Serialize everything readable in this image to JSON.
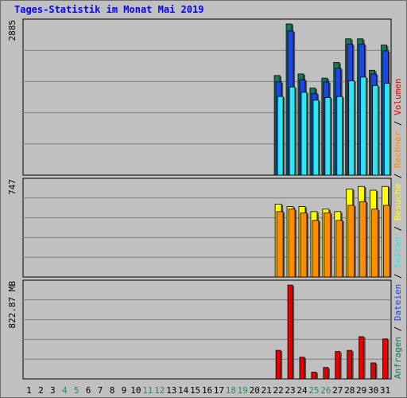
{
  "title": "Tages-Statistik im Monat Mai 2019",
  "colors": {
    "background": "#c0c0c0",
    "frame": "#6d6d6d",
    "title": "#0000ff",
    "anfragen": "#157a5a",
    "dateien": "#1e46e6",
    "seiten": "#2ee6f0",
    "besuche": "#ffff00",
    "rechner": "#ff8c00",
    "volumen": "#e60000",
    "weekend_day": "#2e8b57",
    "weekday": "#000000"
  },
  "chart_data": [
    {
      "type": "bar",
      "panel": "top",
      "y_max_label": "2885",
      "ylim": [
        0,
        2885
      ],
      "x": [
        1,
        2,
        3,
        4,
        5,
        6,
        7,
        8,
        9,
        10,
        11,
        12,
        13,
        14,
        15,
        16,
        17,
        18,
        19,
        20,
        21,
        22,
        23,
        24,
        25,
        26,
        27,
        28,
        29,
        30,
        31
      ],
      "series": [
        {
          "name": "Anfragen",
          "color": "#157a5a",
          "values": [
            0,
            0,
            0,
            0,
            0,
            0,
            0,
            0,
            0,
            0,
            0,
            0,
            0,
            0,
            0,
            0,
            0,
            0,
            0,
            0,
            0,
            1900,
            2885,
            1930,
            1660,
            1850,
            2150,
            2600,
            2600,
            2000,
            2480
          ]
        },
        {
          "name": "Dateien",
          "color": "#1e46e6",
          "values": [
            0,
            0,
            0,
            0,
            0,
            0,
            0,
            0,
            0,
            0,
            0,
            0,
            0,
            0,
            0,
            0,
            0,
            0,
            0,
            0,
            0,
            1780,
            2750,
            1820,
            1560,
            1780,
            2040,
            2500,
            2500,
            1930,
            2370
          ]
        },
        {
          "name": "Seiten",
          "color": "#2ee6f0",
          "values": [
            0,
            0,
            0,
            0,
            0,
            0,
            0,
            0,
            0,
            0,
            0,
            0,
            0,
            0,
            0,
            0,
            0,
            0,
            0,
            0,
            0,
            1500,
            1680,
            1580,
            1430,
            1480,
            1500,
            1800,
            1870,
            1710,
            1750
          ]
        }
      ]
    },
    {
      "type": "bar",
      "panel": "middle",
      "y_max_label": "747",
      "ylim": [
        0,
        747
      ],
      "x": [
        1,
        2,
        3,
        4,
        5,
        6,
        7,
        8,
        9,
        10,
        11,
        12,
        13,
        14,
        15,
        16,
        17,
        18,
        19,
        20,
        21,
        22,
        23,
        24,
        25,
        26,
        27,
        28,
        29,
        30,
        31
      ],
      "series": [
        {
          "name": "Besuche",
          "color": "#ffff00",
          "values": [
            0,
            0,
            0,
            0,
            0,
            0,
            0,
            0,
            0,
            0,
            0,
            0,
            0,
            0,
            0,
            0,
            0,
            0,
            0,
            0,
            0,
            580,
            560,
            560,
            520,
            540,
            520,
            700,
            720,
            690,
            720
          ]
        },
        {
          "name": "Rechner",
          "color": "#ff8c00",
          "values": [
            0,
            0,
            0,
            0,
            0,
            0,
            0,
            0,
            0,
            0,
            0,
            0,
            0,
            0,
            0,
            0,
            0,
            0,
            0,
            0,
            0,
            520,
            540,
            510,
            450,
            510,
            450,
            570,
            600,
            540,
            570
          ]
        }
      ]
    },
    {
      "type": "bar",
      "panel": "bottom",
      "y_max_label": "822.87 MB",
      "ylim": [
        0,
        822.87
      ],
      "x": [
        1,
        2,
        3,
        4,
        5,
        6,
        7,
        8,
        9,
        10,
        11,
        12,
        13,
        14,
        15,
        16,
        17,
        18,
        19,
        20,
        21,
        22,
        23,
        24,
        25,
        26,
        27,
        28,
        29,
        30,
        31
      ],
      "series": [
        {
          "name": "Volumen",
          "color": "#e60000",
          "values": [
            0,
            0,
            0,
            0,
            0,
            0,
            0,
            0,
            0,
            0,
            0,
            0,
            0,
            0,
            0,
            0,
            0,
            0,
            0,
            0,
            0,
            250,
            822,
            190,
            60,
            100,
            240,
            250,
            370,
            140,
            350
          ]
        }
      ]
    }
  ],
  "x_labels": [
    "1",
    "2",
    "3",
    "4",
    "5",
    "6",
    "7",
    "8",
    "9",
    "10",
    "11",
    "12",
    "13",
    "14",
    "15",
    "16",
    "17",
    "18",
    "19",
    "20",
    "21",
    "22",
    "23",
    "24",
    "25",
    "26",
    "27",
    "28",
    "29",
    "30",
    "31"
  ],
  "weekend_days": [
    4,
    5,
    11,
    12,
    18,
    19,
    25,
    26
  ],
  "legend_top": {
    "anfragen": "Anfragen",
    "sep1": "/",
    "dateien": "Dateien",
    "sep2": "/",
    "seiten": "Seiten",
    "sep3": "/",
    "besuche": "Besuche",
    "sep4": "/",
    "rechner": "Rechner",
    "sep5": "/",
    "volumen": "Volumen"
  }
}
